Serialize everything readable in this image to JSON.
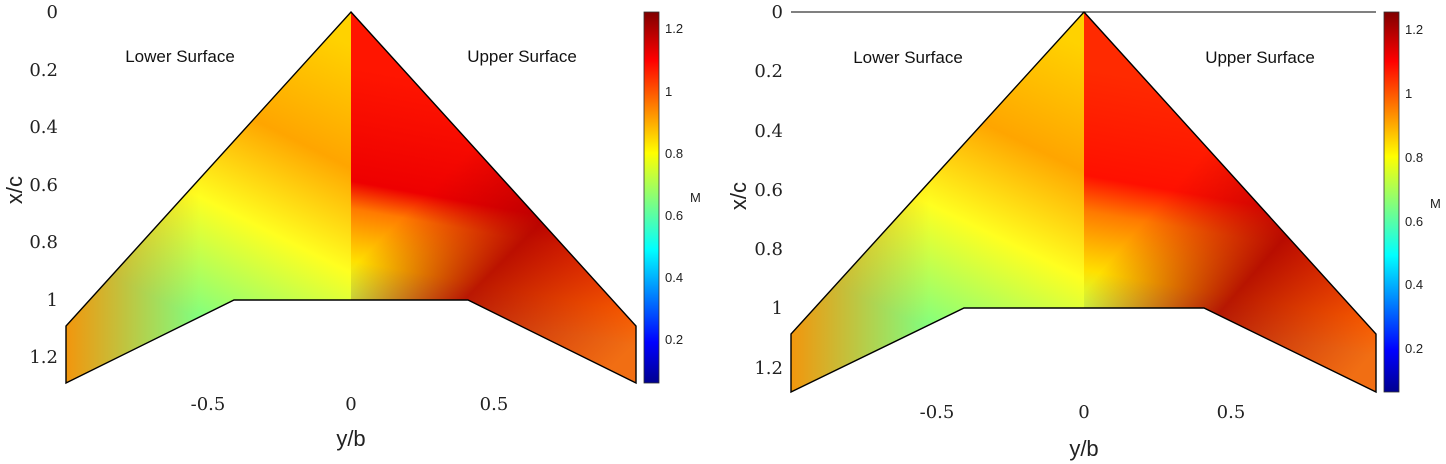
{
  "chart_data": [
    {
      "type": "heatmap",
      "xlabel": "y/b",
      "ylabel": "x/c",
      "xlim": [
        -1,
        1
      ],
      "ylim": [
        0,
        1.28
      ],
      "y_reversed": true,
      "x_ticks": [
        "-0.5",
        "0",
        "0.5"
      ],
      "y_ticks": [
        "0",
        "0.2",
        "0.4",
        "0.6",
        "0.8",
        "1",
        "1.2"
      ],
      "annotations": [
        "Lower Surface",
        "Upper Surface"
      ],
      "colorbar": {
        "label": "M",
        "range": [
          0.05,
          1.25
        ],
        "ticks": [
          "0.2",
          "0.4",
          "0.6",
          "0.8",
          "1",
          "1.2"
        ]
      },
      "planform": {
        "apex": [
          0,
          0
        ],
        "tip": [
          1,
          1.09
        ],
        "tip_trailing": [
          1,
          1.28
        ],
        "kink": [
          0.4,
          1.0
        ]
      }
    },
    {
      "type": "heatmap",
      "xlabel": "y/b",
      "ylabel": "x/c",
      "xlim": [
        -1,
        1
      ],
      "ylim": [
        0,
        1.28
      ],
      "y_reversed": true,
      "x_ticks": [
        "-0.5",
        "0",
        "0.5"
      ],
      "y_ticks": [
        "0",
        "0.2",
        "0.4",
        "0.6",
        "0.8",
        "1",
        "1.2"
      ],
      "annotations": [
        "Lower Surface",
        "Upper Surface"
      ],
      "colorbar": {
        "label": "M",
        "range": [
          0.05,
          1.25
        ],
        "ticks": [
          "0.2",
          "0.4",
          "0.6",
          "0.8",
          "1",
          "1.2"
        ]
      },
      "planform": {
        "apex": [
          0,
          0
        ],
        "tip": [
          1,
          1.09
        ],
        "tip_trailing": [
          1,
          1.28
        ],
        "kink": [
          0.4,
          1.0
        ]
      }
    }
  ]
}
